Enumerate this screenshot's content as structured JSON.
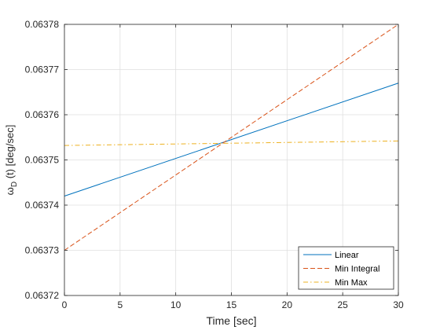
{
  "chart_data": {
    "type": "line",
    "xlabel": "Time [sec]",
    "ylabel_main": "ω",
    "ylabel_sub": "D",
    "ylabel_rest": " (t) [deg/sec]",
    "xlim": [
      0,
      30
    ],
    "ylim": [
      0.06372,
      0.06378
    ],
    "xticks": [
      0,
      5,
      10,
      15,
      20,
      25,
      30
    ],
    "xtick_labels": [
      "0",
      "5",
      "10",
      "15",
      "20",
      "25",
      "30"
    ],
    "yticks": [
      0.06372,
      0.06373,
      0.06374,
      0.06375,
      0.06376,
      0.06377,
      0.06378
    ],
    "ytick_labels": [
      "0.06372",
      "0.06373",
      "0.06374",
      "0.06375",
      "0.06376",
      "0.06377",
      "0.06378"
    ],
    "grid": true,
    "legend_position": "bottom-right",
    "series": [
      {
        "name": "Linear",
        "color": "#0072BD",
        "dash": "solid",
        "x": [
          0,
          30
        ],
        "y": [
          0.063742,
          0.063767
        ]
      },
      {
        "name": "Min Integral",
        "color": "#D95319",
        "dash": "dashed",
        "x": [
          0,
          30
        ],
        "y": [
          0.06373,
          0.06378
        ]
      },
      {
        "name": "Min Max",
        "color": "#EDB120",
        "dash": "dashdot",
        "x": [
          0,
          30
        ],
        "y": [
          0.0637532,
          0.0637542
        ]
      }
    ]
  }
}
